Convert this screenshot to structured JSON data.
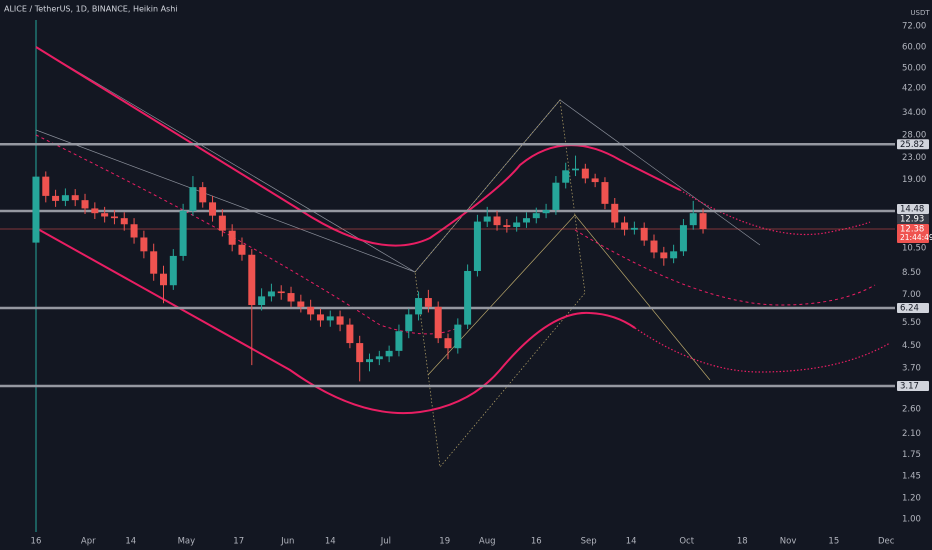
{
  "chart_data": {
    "type": "candlestick",
    "title": "ALICE / TetherUS, 1D, BINANCE, Heikin Ashi",
    "y_unit": "USDT",
    "log_scale": true,
    "up_color": "#26a69a",
    "down_color": "#ef5350",
    "xlim": [
      -11,
      262.7
    ],
    "ylim": [
      0.893,
      90.3
    ],
    "xticks": [
      {
        "value": 0,
        "label": "16"
      },
      {
        "value": 16,
        "label": "Apr"
      },
      {
        "value": 29,
        "label": "14"
      },
      {
        "value": 46,
        "label": "May"
      },
      {
        "value": 62,
        "label": "17"
      },
      {
        "value": 77,
        "label": "Jun"
      },
      {
        "value": 90,
        "label": "14"
      },
      {
        "value": 107,
        "label": "Jul"
      },
      {
        "value": 125,
        "label": "19"
      },
      {
        "value": 138,
        "label": "Aug"
      },
      {
        "value": 153,
        "label": "16"
      },
      {
        "value": 169,
        "label": "Sep"
      },
      {
        "value": 182,
        "label": "14"
      },
      {
        "value": 199,
        "label": "Oct"
      },
      {
        "value": 216,
        "label": "18"
      },
      {
        "value": 230,
        "label": "Nov"
      },
      {
        "value": 244,
        "label": "15"
      },
      {
        "value": 260,
        "label": "Dec"
      }
    ],
    "yticks": [
      {
        "value": 72,
        "label": "72.00"
      },
      {
        "value": 60,
        "label": "60.00"
      },
      {
        "value": 50,
        "label": "50.00"
      },
      {
        "value": 42,
        "label": "42.00"
      },
      {
        "value": 34,
        "label": "34.00"
      },
      {
        "value": 28,
        "label": "28.00"
      },
      {
        "value": 23,
        "label": "23.00"
      },
      {
        "value": 19,
        "label": "19.00"
      },
      {
        "value": 10.5,
        "label": "10.50"
      },
      {
        "value": 8.5,
        "label": "8.50"
      },
      {
        "value": 7,
        "label": "7.00"
      },
      {
        "value": 5.5,
        "label": "5.50"
      },
      {
        "value": 4.5,
        "label": "4.50"
      },
      {
        "value": 3.7,
        "label": "3.70"
      },
      {
        "value": 2.6,
        "label": "2.60"
      },
      {
        "value": 2.1,
        "label": "2.10"
      },
      {
        "value": 1.75,
        "label": "1.75"
      },
      {
        "value": 1.45,
        "label": "1.45"
      },
      {
        "value": 1.2,
        "label": "1.20"
      },
      {
        "value": 1,
        "label": "1.00"
      }
    ],
    "levels": [
      25.82,
      14.48,
      6.24,
      3.17
    ],
    "level_color": "#9598a1",
    "last_close_tag": 12.38,
    "countdown": "21:44:49",
    "prev_tag": 12.93,
    "x": [
      0,
      3,
      6,
      9,
      12,
      15,
      18,
      21,
      24,
      27,
      30,
      33,
      36,
      39,
      42,
      45,
      48,
      51,
      54,
      57,
      60,
      63,
      66,
      69,
      72,
      75,
      78,
      81,
      84,
      87,
      90,
      93,
      96,
      99,
      102,
      105,
      108,
      111,
      114,
      117,
      120,
      123,
      126,
      129,
      132,
      135,
      138,
      141,
      144,
      147,
      150,
      153,
      156,
      159,
      162,
      165,
      168,
      171,
      174,
      177,
      180,
      183,
      186,
      189,
      192,
      195,
      198,
      201,
      204
    ],
    "open": [
      11,
      19.5,
      16.5,
      15.8,
      16.6,
      15.9,
      14.8,
      14.2,
      13.8,
      13.6,
      12.9,
      11.5,
      10.2,
      8.4,
      7.6,
      9.8,
      14.5,
      17.8,
      15.6,
      13.9,
      12.2,
      10.8,
      9.9,
      6.4,
      6.9,
      7.2,
      7.1,
      6.6,
      6.3,
      5.9,
      5.6,
      5.8,
      5.4,
      4.6,
      3.9,
      4.0,
      4.1,
      4.3,
      5.1,
      5.9,
      6.8,
      6.3,
      4.8,
      4.4,
      5.4,
      8.6,
      13.2,
      13.8,
      12.8,
      12.6,
      13.1,
      13.6,
      14.2,
      14.6,
      18.5,
      20.6,
      20.9,
      19.2,
      18.6,
      15.4,
      13.1,
      12.3,
      12.5,
      11.2,
      10.1,
      9.6,
      10.2,
      12.8,
      14.2
    ],
    "high": [
      25,
      20.4,
      17.4,
      17.6,
      17.5,
      16.8,
      15.6,
      15.0,
      14.6,
      14.3,
      13.6,
      12.2,
      10.9,
      9.0,
      10.4,
      15.4,
      19.6,
      18.6,
      16.5,
      14.7,
      12.9,
      11.5,
      10.4,
      7.4,
      7.7,
      7.6,
      7.5,
      7.0,
      6.7,
      6.2,
      6.1,
      6.1,
      5.7,
      4.9,
      4.2,
      4.3,
      4.5,
      5.4,
      6.2,
      7.2,
      7.3,
      6.6,
      5.0,
      5.7,
      9.1,
      14.0,
      15.0,
      14.5,
      13.5,
      13.8,
      14.3,
      14.9,
      15.4,
      19.6,
      22.0,
      23.4,
      21.8,
      20.0,
      19.4,
      16.2,
      13.8,
      13.2,
      13.1,
      11.8,
      10.6,
      10.8,
      13.5,
      15.8,
      14.8
    ],
    "low": [
      10.5,
      15.6,
      15.0,
      15.1,
      15.1,
      14.1,
      13.5,
      13.1,
      12.9,
      12.2,
      10.9,
      9.6,
      7.9,
      6.5,
      7.3,
      9.4,
      13.9,
      14.9,
      13.2,
      11.6,
      10.2,
      9.4,
      3.8,
      6.1,
      6.6,
      6.7,
      6.3,
      6.0,
      5.6,
      5.3,
      5.3,
      5.1,
      4.4,
      3.3,
      3.6,
      3.8,
      3.9,
      4.1,
      4.8,
      5.6,
      6.0,
      4.6,
      4.0,
      4.2,
      5.2,
      8.2,
      12.6,
      12.2,
      12.0,
      12.1,
      12.5,
      13.0,
      13.6,
      14.0,
      17.6,
      19.6,
      18.4,
      17.8,
      14.7,
      12.5,
      11.7,
      11.8,
      10.7,
      9.6,
      9.0,
      9.2,
      9.8,
      12.3,
      11.9
    ],
    "close": [
      19.5,
      16.5,
      15.8,
      16.6,
      15.9,
      14.8,
      14.2,
      13.8,
      13.6,
      12.9,
      11.5,
      10.2,
      8.4,
      7.6,
      9.8,
      14.5,
      17.8,
      15.6,
      13.9,
      12.2,
      10.8,
      9.9,
      6.4,
      6.9,
      7.2,
      7.1,
      6.6,
      6.3,
      5.9,
      5.6,
      5.8,
      5.4,
      4.6,
      3.9,
      4.0,
      4.1,
      4.3,
      5.1,
      5.9,
      6.8,
      6.3,
      4.8,
      4.4,
      5.4,
      8.6,
      13.2,
      13.8,
      12.8,
      12.6,
      13.1,
      13.6,
      14.2,
      14.6,
      18.5,
      20.6,
      20.9,
      19.2,
      18.6,
      15.4,
      13.1,
      12.3,
      12.5,
      11.2,
      10.1,
      9.6,
      10.2,
      12.8,
      14.2,
      12.38
    ]
  }
}
